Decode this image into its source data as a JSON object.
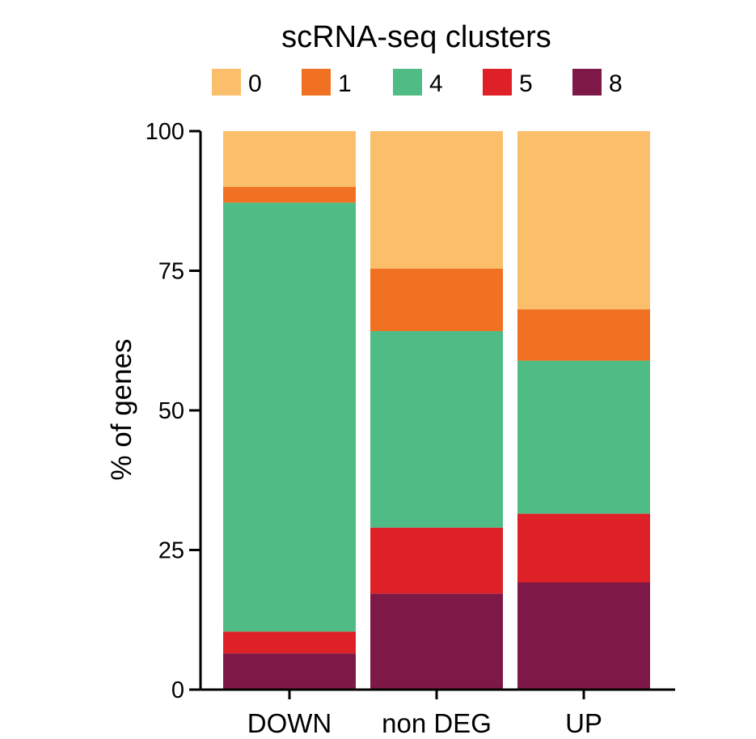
{
  "chart_data": {
    "type": "bar",
    "stacked": true,
    "legend_title": "scRNA-seq clusters",
    "legend_position": "top",
    "ylabel": "% of genes",
    "xlabel": "",
    "ylim": [
      0,
      100
    ],
    "yticks": [
      "0",
      "25",
      "50",
      "75",
      "100"
    ],
    "grid": false,
    "categories": [
      "DOWN",
      "non DEG",
      "UP"
    ],
    "series": [
      {
        "name": "8",
        "color": "#7E1947",
        "values": [
          6.5,
          17.2,
          19.2
        ]
      },
      {
        "name": "5",
        "color": "#DE2027",
        "values": [
          3.9,
          11.8,
          12.3
        ]
      },
      {
        "name": "4",
        "color": "#50BC85",
        "values": [
          76.8,
          35.2,
          27.4
        ]
      },
      {
        "name": "1",
        "color": "#F07122",
        "values": [
          2.8,
          11.2,
          9.2
        ]
      },
      {
        "name": "0",
        "color": "#FBBF6B",
        "values": [
          10.0,
          24.6,
          31.9
        ]
      }
    ],
    "legend_order": [
      "0",
      "1",
      "4",
      "5",
      "8"
    ]
  }
}
